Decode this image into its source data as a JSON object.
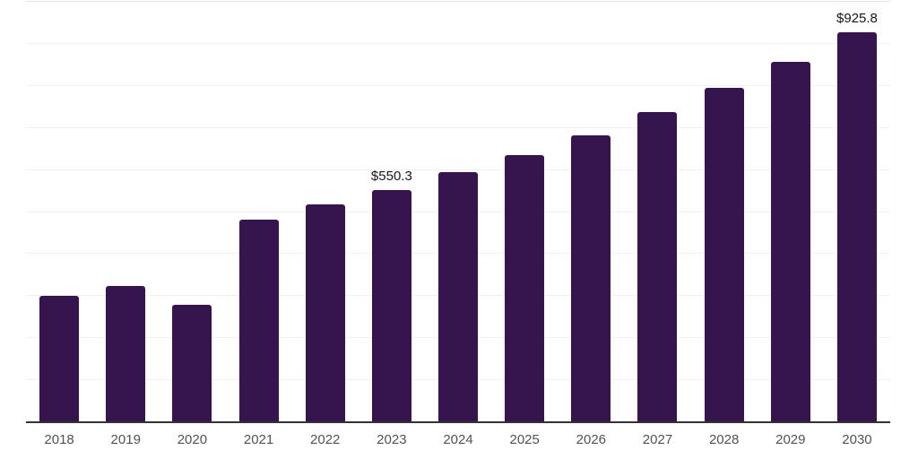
{
  "chart_data": {
    "type": "bar",
    "title": "",
    "xlabel": "",
    "ylabel": "",
    "categories": [
      "2018",
      "2019",
      "2020",
      "2021",
      "2022",
      "2023",
      "2024",
      "2025",
      "2026",
      "2027",
      "2028",
      "2029",
      "2030"
    ],
    "values": [
      297.6,
      321.8,
      277.8,
      480.0,
      515.6,
      550.3,
      592.1,
      633.5,
      680.7,
      735.4,
      792.3,
      856.1,
      925.8
    ],
    "data_labels": [
      "",
      "",
      "",
      "",
      "",
      "$550.3",
      "",
      "",
      "",
      "",
      "",
      "",
      "$925.8"
    ],
    "ylim": [
      0,
      1000
    ],
    "grid_step": 100,
    "grid": true,
    "legend_position": "none",
    "y_axis_tick_labels_visible": false,
    "colors": {
      "bar": "#36154E",
      "grid": "#f1f1f1",
      "plot_top_border": "#e3e3e3",
      "axis": "#333333",
      "tick_label": "#525252",
      "data_label": "#151515",
      "background": "#ffffff"
    }
  }
}
